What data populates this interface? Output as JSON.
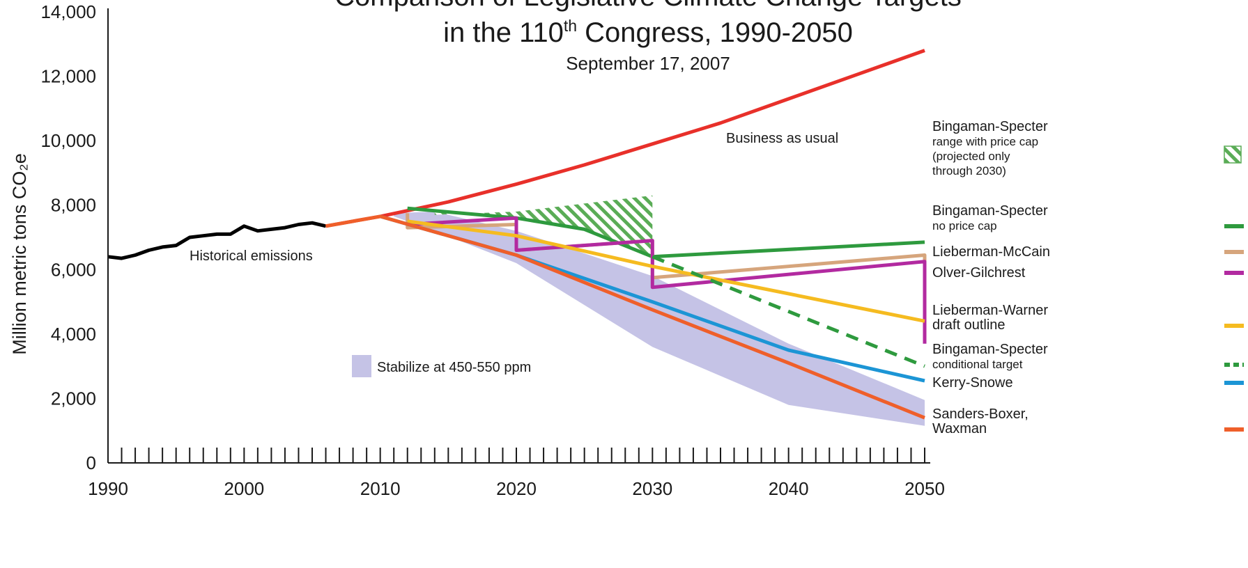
{
  "chart_data": {
    "type": "line",
    "title_line1": "Comparison of Legislative Climate Change Targets",
    "title_line2_pre": "in the 110",
    "title_line2_sup": "th",
    "title_line2_post": " Congress, 1990-2050",
    "subtitle": "September 17, 2007",
    "ylabel": "Million metric tons CO₂e",
    "ylim": [
      0,
      14000
    ],
    "xlim": [
      1990,
      2050
    ],
    "y_ticks": [
      {
        "value": 0,
        "label": "0"
      },
      {
        "value": 2000,
        "label": "2,000"
      },
      {
        "value": 4000,
        "label": "4,000"
      },
      {
        "value": 6000,
        "label": "6,000"
      },
      {
        "value": 8000,
        "label": "8,000"
      },
      {
        "value": 10000,
        "label": "10,000"
      },
      {
        "value": 12000,
        "label": "12,000"
      },
      {
        "value": 14000,
        "label": "14,000"
      }
    ],
    "x_ticks": [
      {
        "value": 1990,
        "label": "1990"
      },
      {
        "value": 2000,
        "label": "2000"
      },
      {
        "value": 2010,
        "label": "2010"
      },
      {
        "value": 2020,
        "label": "2020"
      },
      {
        "value": 2030,
        "label": "2030"
      },
      {
        "value": 2040,
        "label": "2040"
      },
      {
        "value": 2050,
        "label": "2050"
      }
    ],
    "annotations": {
      "historical": "Historical emissions",
      "bau": "Business as usual",
      "stabilize": "Stabilize at 450-550 ppm"
    },
    "series": [
      {
        "key": "historical",
        "color": "#000000",
        "dashed": false,
        "points": [
          [
            1990,
            6400
          ],
          [
            1991,
            6350
          ],
          [
            1992,
            6450
          ],
          [
            1993,
            6600
          ],
          [
            1994,
            6700
          ],
          [
            1995,
            6750
          ],
          [
            1996,
            7000
          ],
          [
            1997,
            7050
          ],
          [
            1998,
            7100
          ],
          [
            1999,
            7100
          ],
          [
            2000,
            7350
          ],
          [
            2001,
            7200
          ],
          [
            2002,
            7250
          ],
          [
            2003,
            7300
          ],
          [
            2004,
            7400
          ],
          [
            2005,
            7450
          ],
          [
            2006,
            7350
          ]
        ]
      },
      {
        "key": "bau",
        "color": "#e8302a",
        "dashed": false,
        "points": [
          [
            2006,
            7350
          ],
          [
            2010,
            7650
          ],
          [
            2015,
            8100
          ],
          [
            2020,
            8650
          ],
          [
            2025,
            9250
          ],
          [
            2030,
            9900
          ],
          [
            2035,
            10550
          ],
          [
            2040,
            11300
          ],
          [
            2045,
            12050
          ],
          [
            2050,
            12800
          ]
        ]
      },
      {
        "key": "bingaman-specter-no-cap",
        "name": "Bingaman-Specter no price cap",
        "color": "#2e9a3e",
        "dashed": false,
        "points": [
          [
            2012,
            7900
          ],
          [
            2020,
            7600
          ],
          [
            2025,
            7250
          ],
          [
            2030,
            6400
          ],
          [
            2050,
            6850
          ]
        ]
      },
      {
        "key": "lieberman-mccain",
        "name": "Lieberman-McCain",
        "color": "#d6a57c",
        "dashed": false,
        "points": [
          [
            2012,
            7750
          ],
          [
            2012,
            7300
          ],
          [
            2020,
            7400
          ],
          [
            2020,
            6600
          ],
          [
            2030,
            6900
          ],
          [
            2030,
            5750
          ],
          [
            2050,
            6450
          ],
          [
            2050,
            4300
          ]
        ]
      },
      {
        "key": "olver-gilchrest",
        "name": "Olver-Gilchrest",
        "color": "#b22aa0",
        "dashed": false,
        "points": [
          [
            2012,
            7400
          ],
          [
            2020,
            7600
          ],
          [
            2020,
            6600
          ],
          [
            2030,
            6900
          ],
          [
            2030,
            5450
          ],
          [
            2050,
            6250
          ],
          [
            2050,
            3700
          ]
        ]
      },
      {
        "key": "lieberman-warner",
        "name": "Lieberman-Warner draft outline",
        "color": "#f5bb20",
        "dashed": false,
        "points": [
          [
            2012,
            7500
          ],
          [
            2020,
            7050
          ],
          [
            2030,
            6100
          ],
          [
            2050,
            4400
          ]
        ]
      },
      {
        "key": "bingaman-specter-conditional",
        "name": "Bingaman-Specter conditional target",
        "color": "#2e9a3e",
        "dashed": true,
        "points": [
          [
            2030,
            6400
          ],
          [
            2050,
            3000
          ]
        ]
      },
      {
        "key": "kerry-snowe",
        "name": "Kerry-Snowe",
        "color": "#1c95d5",
        "dashed": false,
        "points": [
          [
            2010,
            7650
          ],
          [
            2020,
            6450
          ],
          [
            2030,
            5000
          ],
          [
            2040,
            3500
          ],
          [
            2050,
            2550
          ]
        ]
      },
      {
        "key": "sanders-boxer",
        "name": "Sanders-Boxer, Waxman",
        "color": "#ef5f2a",
        "dashed": false,
        "points": [
          [
            2006,
            7350
          ],
          [
            2010,
            7650
          ],
          [
            2020,
            6450
          ],
          [
            2030,
            4750
          ],
          [
            2040,
            3100
          ],
          [
            2050,
            1400
          ]
        ]
      }
    ],
    "stabilize_band": {
      "color": "#c5c3e6",
      "upper": [
        [
          2011,
          7750
        ],
        [
          2014,
          7800
        ],
        [
          2020,
          7200
        ],
        [
          2030,
          5800
        ],
        [
          2040,
          3700
        ],
        [
          2050,
          1950
        ]
      ],
      "lower": [
        [
          2050,
          1150
        ],
        [
          2040,
          1800
        ],
        [
          2030,
          3600
        ],
        [
          2020,
          6200
        ],
        [
          2014,
          7200
        ],
        [
          2011,
          7650
        ]
      ]
    },
    "price_cap_range": {
      "color": "#5aac56",
      "upper": [
        [
          2014,
          7700
        ],
        [
          2020,
          7800
        ],
        [
          2030,
          8300
        ]
      ],
      "lower": [
        [
          2030,
          6400
        ],
        [
          2025,
          7250
        ],
        [
          2020,
          7600
        ],
        [
          2014,
          7850
        ]
      ]
    },
    "legend": [
      {
        "key": "range",
        "lines": [
          "Bingaman-Specter",
          "range with price cap",
          "(projected only",
          "through 2030)"
        ],
        "swatch": "hatch",
        "color": "#5aac56"
      },
      {
        "key": "bs-nocap",
        "lines": [
          "Bingaman-Specter",
          "no price cap"
        ],
        "swatch": "line",
        "color": "#2e9a3e",
        "dashed": false
      },
      {
        "key": "lm",
        "lines": [
          "Lieberman-McCain"
        ],
        "swatch": "line",
        "color": "#d6a57c",
        "dashed": false
      },
      {
        "key": "og",
        "lines": [
          "Olver-Gilchrest"
        ],
        "swatch": "line",
        "color": "#b22aa0",
        "dashed": false
      },
      {
        "key": "lw",
        "lines": [
          "Lieberman-Warner",
          "draft outline"
        ],
        "swatch": "line",
        "color": "#f5bb20",
        "dashed": false
      },
      {
        "key": "bs-cond",
        "lines": [
          "Bingaman-Specter",
          "conditional target"
        ],
        "swatch": "line",
        "color": "#2e9a3e",
        "dashed": true
      },
      {
        "key": "ks",
        "lines": [
          "Kerry-Snowe"
        ],
        "swatch": "line",
        "color": "#1c95d5",
        "dashed": false
      },
      {
        "key": "sbw",
        "lines": [
          "Sanders-Boxer,",
          "Waxman"
        ],
        "swatch": "line",
        "color": "#ef5f2a",
        "dashed": false
      }
    ]
  }
}
